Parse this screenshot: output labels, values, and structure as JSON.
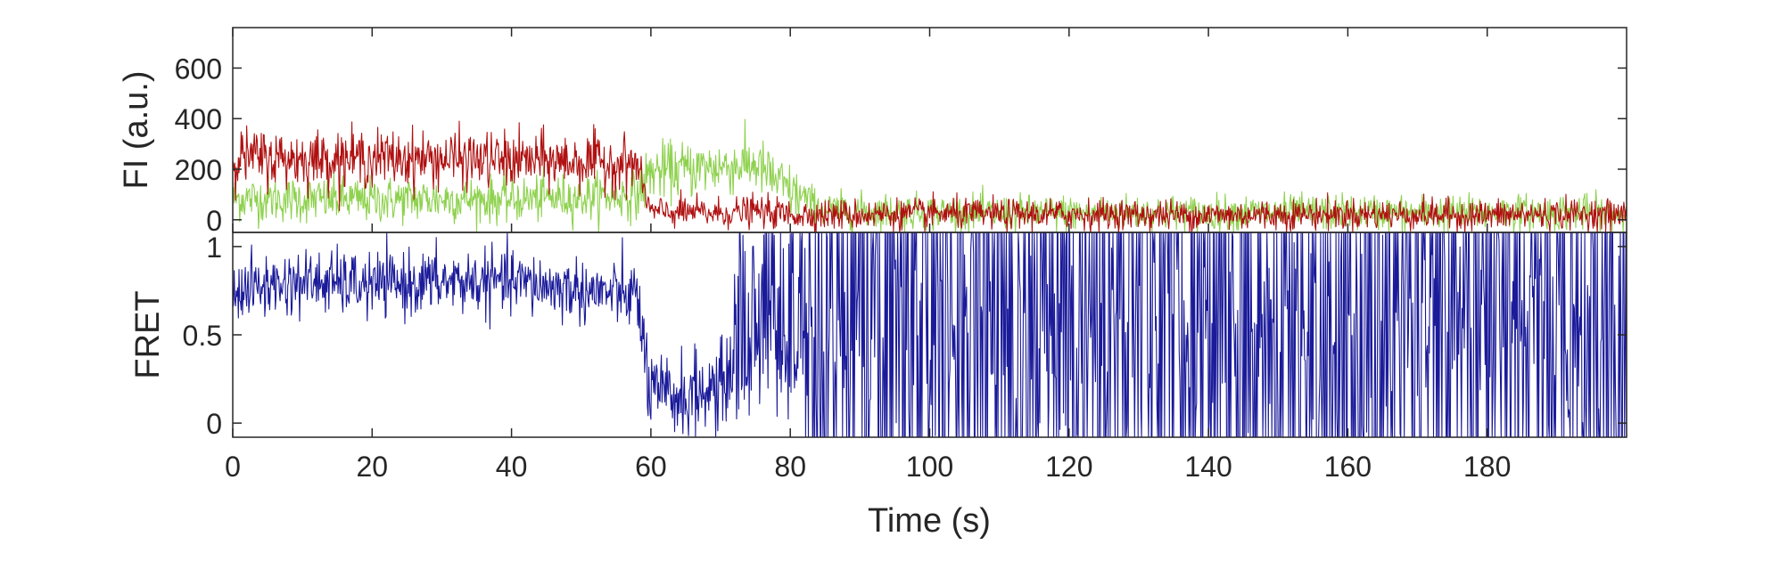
{
  "chart_data": [
    {
      "type": "line",
      "panel": "top",
      "ylabel": "FI (a.u.)",
      "ylim": [
        -50,
        760
      ],
      "yticks": [
        0,
        200,
        400,
        600
      ],
      "xlim": [
        0,
        200
      ],
      "grid": false,
      "legend": "none",
      "series": [
        {
          "color": "#8ed14e",
          "x": [
            0,
            10,
            20,
            30,
            40,
            50,
            58,
            60,
            65,
            70,
            75,
            80,
            85,
            90,
            100,
            110,
            120,
            130,
            140,
            150,
            160,
            170,
            180,
            190,
            200
          ],
          "values": [
            85,
            80,
            78,
            82,
            80,
            90,
            95,
            190,
            200,
            210,
            220,
            110,
            40,
            35,
            30,
            25,
            28,
            30,
            25,
            28,
            30,
            25,
            28,
            30,
            25
          ]
        },
        {
          "color": "#b01010",
          "x": [
            0,
            10,
            20,
            30,
            40,
            50,
            58,
            60,
            65,
            70,
            75,
            80,
            85,
            90,
            100,
            110,
            120,
            130,
            140,
            150,
            160,
            170,
            180,
            190,
            200
          ],
          "values": [
            250,
            240,
            245,
            240,
            235,
            230,
            220,
            30,
            30,
            25,
            35,
            20,
            20,
            20,
            25,
            20,
            22,
            20,
            18,
            20,
            22,
            20,
            18,
            22,
            20
          ]
        }
      ]
    },
    {
      "type": "line",
      "panel": "bottom",
      "xlabel": "Time (s)",
      "ylabel": "FRET",
      "xlim": [
        0,
        200
      ],
      "ylim": [
        -0.08,
        1.08
      ],
      "xticks": [
        0,
        20,
        40,
        60,
        80,
        100,
        120,
        140,
        160,
        180
      ],
      "yticks": [
        0,
        0.5,
        1
      ],
      "yticklabels": [
        "0",
        "0.5",
        "1"
      ],
      "grid": false,
      "legend": "none",
      "series": [
        {
          "color": "#1a1a9a",
          "x": [
            0,
            10,
            20,
            30,
            40,
            50,
            58,
            60,
            65,
            70,
            75,
            80,
            85,
            90,
            100,
            120,
            140,
            160,
            180,
            200
          ],
          "values": [
            0.75,
            0.8,
            0.78,
            0.8,
            0.8,
            0.75,
            0.72,
            0.15,
            0.15,
            0.2,
            0.5,
            0.5,
            0.55,
            0.55,
            0.55,
            0.55,
            0.55,
            0.55,
            0.55,
            0.55
          ]
        }
      ]
    }
  ]
}
